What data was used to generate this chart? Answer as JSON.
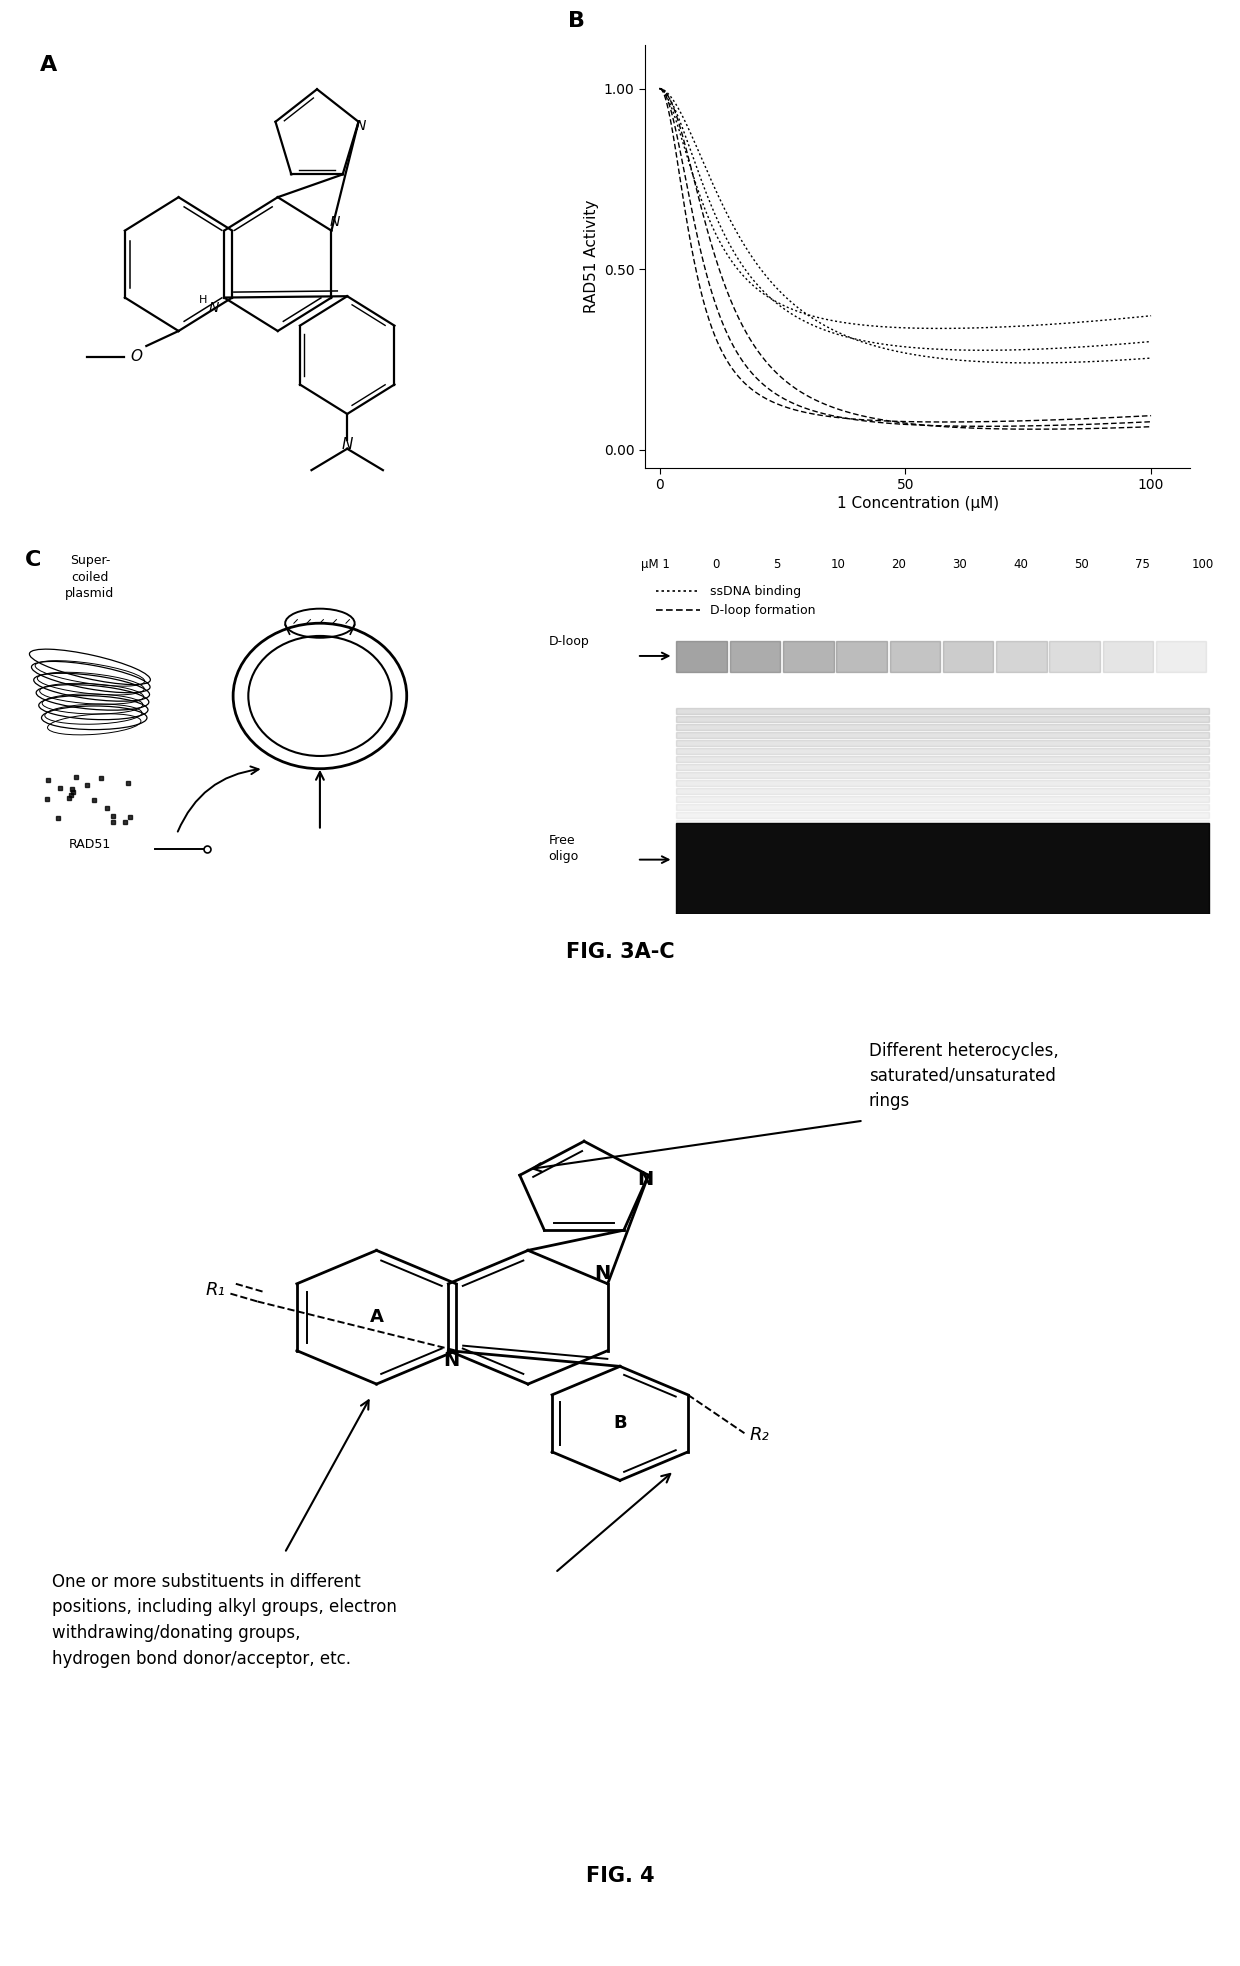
{
  "fig_width": 12.4,
  "fig_height": 19.66,
  "bg_color": "#ffffff",
  "panel_A_label": "A",
  "panel_B_label": "B",
  "panel_C_label": "C",
  "fig3_caption": "FIG. 3A-C",
  "fig4_caption": "FIG. 4",
  "panel_B": {
    "xlabel": "1 Concentration (μM)",
    "ylabel": "RAD51 Activity",
    "yticks": [
      0.0,
      0.5,
      1.0
    ],
    "xticks": [
      0,
      50,
      100
    ],
    "xlim": [
      -3,
      108
    ],
    "ylim": [
      -0.05,
      1.12
    ],
    "legend_ssdna": "ssDNA binding",
    "legend_dloop": "D-loop formation",
    "ssdna_ic50s": [
      10,
      13,
      17
    ],
    "ssdna_ymins": [
      0.28,
      0.2,
      0.14
    ],
    "dloop_ic50s": [
      7,
      9,
      12
    ],
    "dloop_ymins": [
      0.05,
      0.03,
      0.01
    ]
  },
  "panel_C": {
    "header_labels": [
      "μM 1",
      "0",
      "5",
      "10",
      "20",
      "30",
      "40",
      "50",
      "75",
      "100"
    ],
    "dloop_label": "D-loop",
    "free_oligo_label": "Free\noligo",
    "rad51_label": "RAD51",
    "supercoiled_label": "Super-\ncoiled\nplasmid"
  },
  "fig4": {
    "text_right": "Different heterocycles,\nsaturated/unsaturated\nrings",
    "text_left": "One or more substituents in different\npositions, including alkyl groups, electron\nwithdrawing/donating groups,\nhydrogen bond donor/acceptor, etc."
  }
}
